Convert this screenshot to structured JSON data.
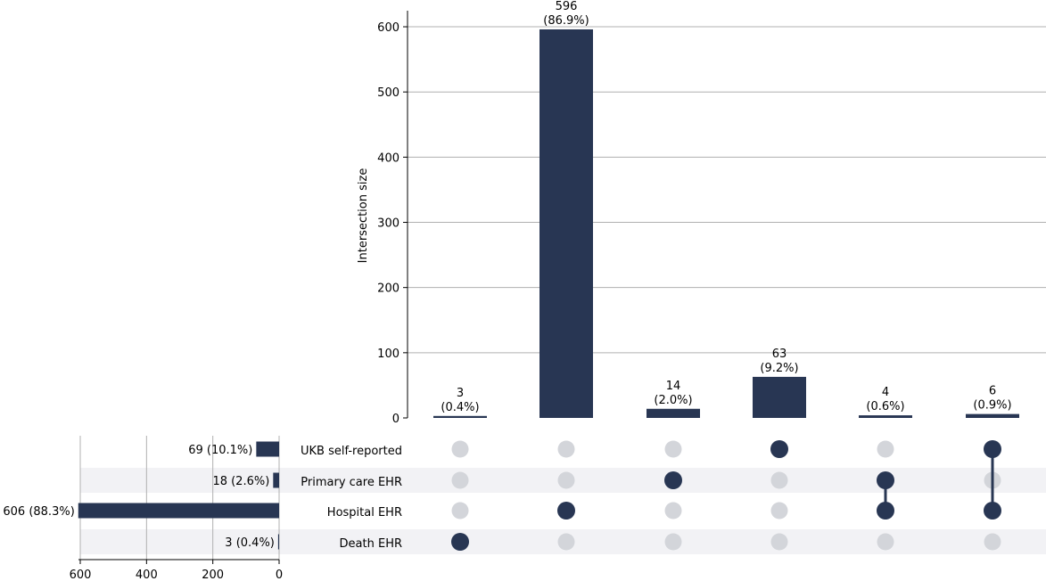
{
  "chart_data": [
    {
      "type": "bar",
      "ylabel": "Intersection size",
      "ylim": [
        0,
        625
      ],
      "yticks": [
        0,
        100,
        200,
        300,
        400,
        500,
        600
      ],
      "grid": true,
      "bar_color": "#283653",
      "values": [
        3,
        596,
        14,
        63,
        4,
        6
      ],
      "value_labels": [
        "3",
        "596",
        "14",
        "63",
        "4",
        "6"
      ],
      "percent_labels": [
        "(0.4%)",
        "(86.9%)",
        "(2.0%)",
        "(9.2%)",
        "(0.6%)",
        "(0.9%)"
      ]
    },
    {
      "type": "bar",
      "orientation": "horizontal-reversed",
      "categories": [
        "UKB self-reported",
        "Primary care EHR",
        "Hospital EHR",
        "Death EHR"
      ],
      "values": [
        69,
        18,
        606,
        3
      ],
      "labels": [
        "69 (10.1%)",
        "18 (2.6%)",
        "606 (88.3%)",
        "3 (0.4%)"
      ],
      "xlim": [
        0,
        600
      ],
      "xticks": [
        "600",
        "400",
        "200",
        "0"
      ],
      "bar_color": "#283653"
    },
    {
      "type": "matrix",
      "sets": [
        "UKB self-reported",
        "Primary care EHR",
        "Hospital EHR",
        "Death EHR"
      ],
      "intersections": [
        [
          false,
          false,
          false,
          true
        ],
        [
          false,
          false,
          true,
          false
        ],
        [
          false,
          true,
          false,
          false
        ],
        [
          true,
          false,
          false,
          false
        ],
        [
          false,
          true,
          true,
          false
        ],
        [
          true,
          false,
          true,
          false
        ]
      ],
      "active_color": "#283653",
      "inactive_color": "#d3d5da"
    }
  ]
}
